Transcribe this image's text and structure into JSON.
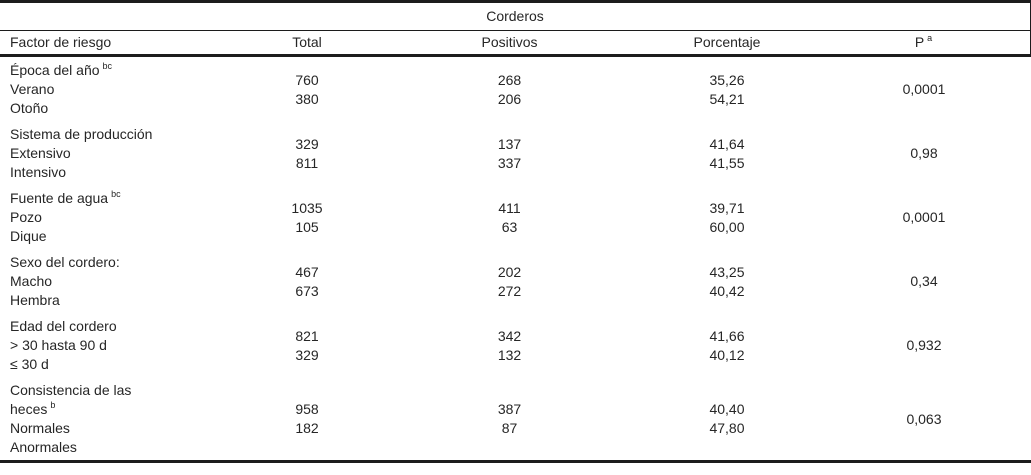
{
  "colors": {
    "text": "#262626",
    "rule": "#1c1c1c",
    "bg": "#ffffff"
  },
  "table": {
    "title": "Corderos",
    "columns": [
      "Factor de riesgo",
      "Total",
      "Positivos",
      "Porcentaje",
      "P"
    ],
    "p_superscript": "a",
    "groups": [
      {
        "factor": "Época del año",
        "factor_sup": "bc",
        "levels": [
          "Verano",
          "Otoño"
        ],
        "total": [
          "760",
          "380"
        ],
        "positivos": [
          "268",
          "206"
        ],
        "porcentaje": [
          "35,26",
          "54,21"
        ],
        "p": "0,0001"
      },
      {
        "factor": "Sistema de producción",
        "factor_sup": "",
        "levels": [
          "Extensivo",
          "Intensivo"
        ],
        "total": [
          "329",
          "811"
        ],
        "positivos": [
          "137",
          "337"
        ],
        "porcentaje": [
          "41,64",
          "41,55"
        ],
        "p": "0,98"
      },
      {
        "factor": "Fuente de agua",
        "factor_sup": "bc",
        "levels": [
          "Pozo",
          "Dique"
        ],
        "total": [
          "1035",
          "105"
        ],
        "positivos": [
          "411",
          "63"
        ],
        "porcentaje": [
          "39,71",
          "60,00"
        ],
        "p": "0,0001"
      },
      {
        "factor": "Sexo del cordero:",
        "factor_sup": "",
        "levels": [
          "Macho",
          "Hembra"
        ],
        "total": [
          "467",
          "673"
        ],
        "positivos": [
          "202",
          "272"
        ],
        "porcentaje": [
          "43,25",
          "40,42"
        ],
        "p": "0,34"
      },
      {
        "factor": "Edad del cordero",
        "factor_sup": "",
        "levels": [
          "> 30 hasta 90 d",
          "≤ 30 d"
        ],
        "total": [
          "821",
          "329"
        ],
        "positivos": [
          "342",
          "132"
        ],
        "porcentaje": [
          "41,66",
          "40,12"
        ],
        "p": "0,932"
      },
      {
        "factor": "Consistencia de las heces",
        "factor_sup": "b",
        "levels": [
          "Normales",
          "Anormales"
        ],
        "total": [
          "958",
          "182"
        ],
        "positivos": [
          "387",
          "87"
        ],
        "porcentaje": [
          "40,40",
          "47,80"
        ],
        "p": "0,063"
      }
    ]
  }
}
